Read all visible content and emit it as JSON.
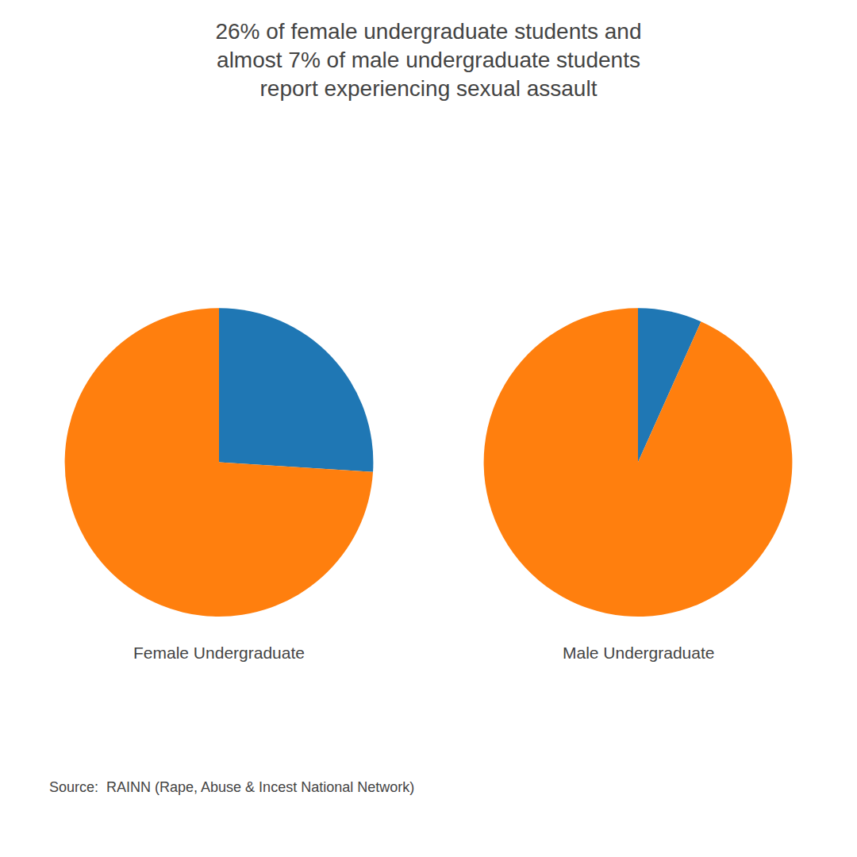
{
  "title": "26% of female undergraduate students and\nalmost 7% of male undergraduate students\nreport experiencing sexual assault",
  "annotations": [
    "Source:  RAINN (Rape, Abuse & Incest National Network)"
  ],
  "chart_data": [
    {
      "type": "pie",
      "title": "Female Undergraduate",
      "values": [
        26,
        74
      ]
    },
    {
      "type": "pie",
      "title": "Male Undergraduate",
      "values": [
        6.7,
        93.3
      ]
    }
  ]
}
